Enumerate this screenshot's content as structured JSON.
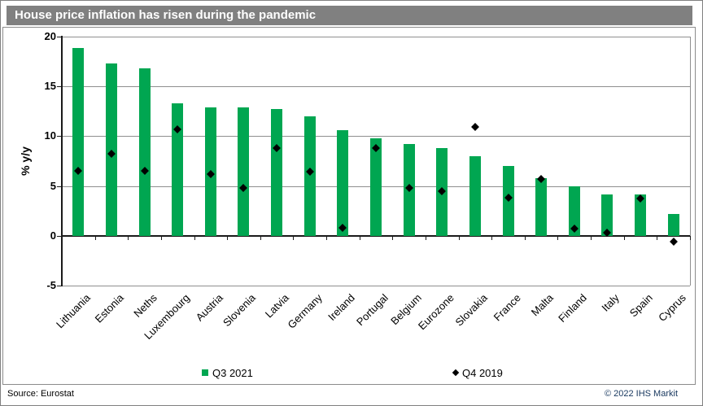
{
  "header": {
    "title": "House price inflation has risen during the pandemic"
  },
  "footer": {
    "source": "Source: Eurostat",
    "copyright": "© 2022  IHS Markit"
  },
  "colors": {
    "title_bar": "#808080",
    "bar": "#00a651",
    "marker": "#000000",
    "gridline": "#8f8f8f",
    "axis": "#1a1a1a",
    "copyright_text": "#17375e"
  },
  "chart_data": {
    "type": "bar",
    "title": "House price inflation has risen during the pandemic",
    "xlabel": "",
    "ylabel": "% y/y",
    "ylim": [
      -5,
      20
    ],
    "yticks": [
      20,
      15,
      10,
      5,
      0,
      -5
    ],
    "grid": true,
    "legend_position": "bottom",
    "categories": [
      "Lithuania",
      "Estonia",
      "Neths",
      "Luxembourg",
      "Austria",
      "Slovenia",
      "Latvia",
      "Germany",
      "Ireland",
      "Portugal",
      "Belgium",
      "Eurozone",
      "Slovakia",
      "France",
      "Malta",
      "Finland",
      "Italy",
      "Spain",
      "Cyprus"
    ],
    "series": [
      {
        "name": "Q3 2021",
        "type": "bar",
        "color": "#00a651",
        "values": [
          18.9,
          17.3,
          16.8,
          13.3,
          12.9,
          12.9,
          12.7,
          12.0,
          10.6,
          9.8,
          9.2,
          8.8,
          8.0,
          7.0,
          5.8,
          5.0,
          4.1,
          4.1,
          2.2
        ]
      },
      {
        "name": "Q4 2019",
        "type": "scatter",
        "marker": "diamond",
        "color": "#000000",
        "values": [
          6.5,
          8.2,
          6.5,
          10.7,
          6.2,
          4.8,
          8.8,
          6.4,
          0.8,
          8.8,
          4.8,
          4.5,
          10.9,
          3.8,
          5.7,
          0.7,
          0.3,
          3.7,
          -0.6
        ]
      }
    ]
  }
}
